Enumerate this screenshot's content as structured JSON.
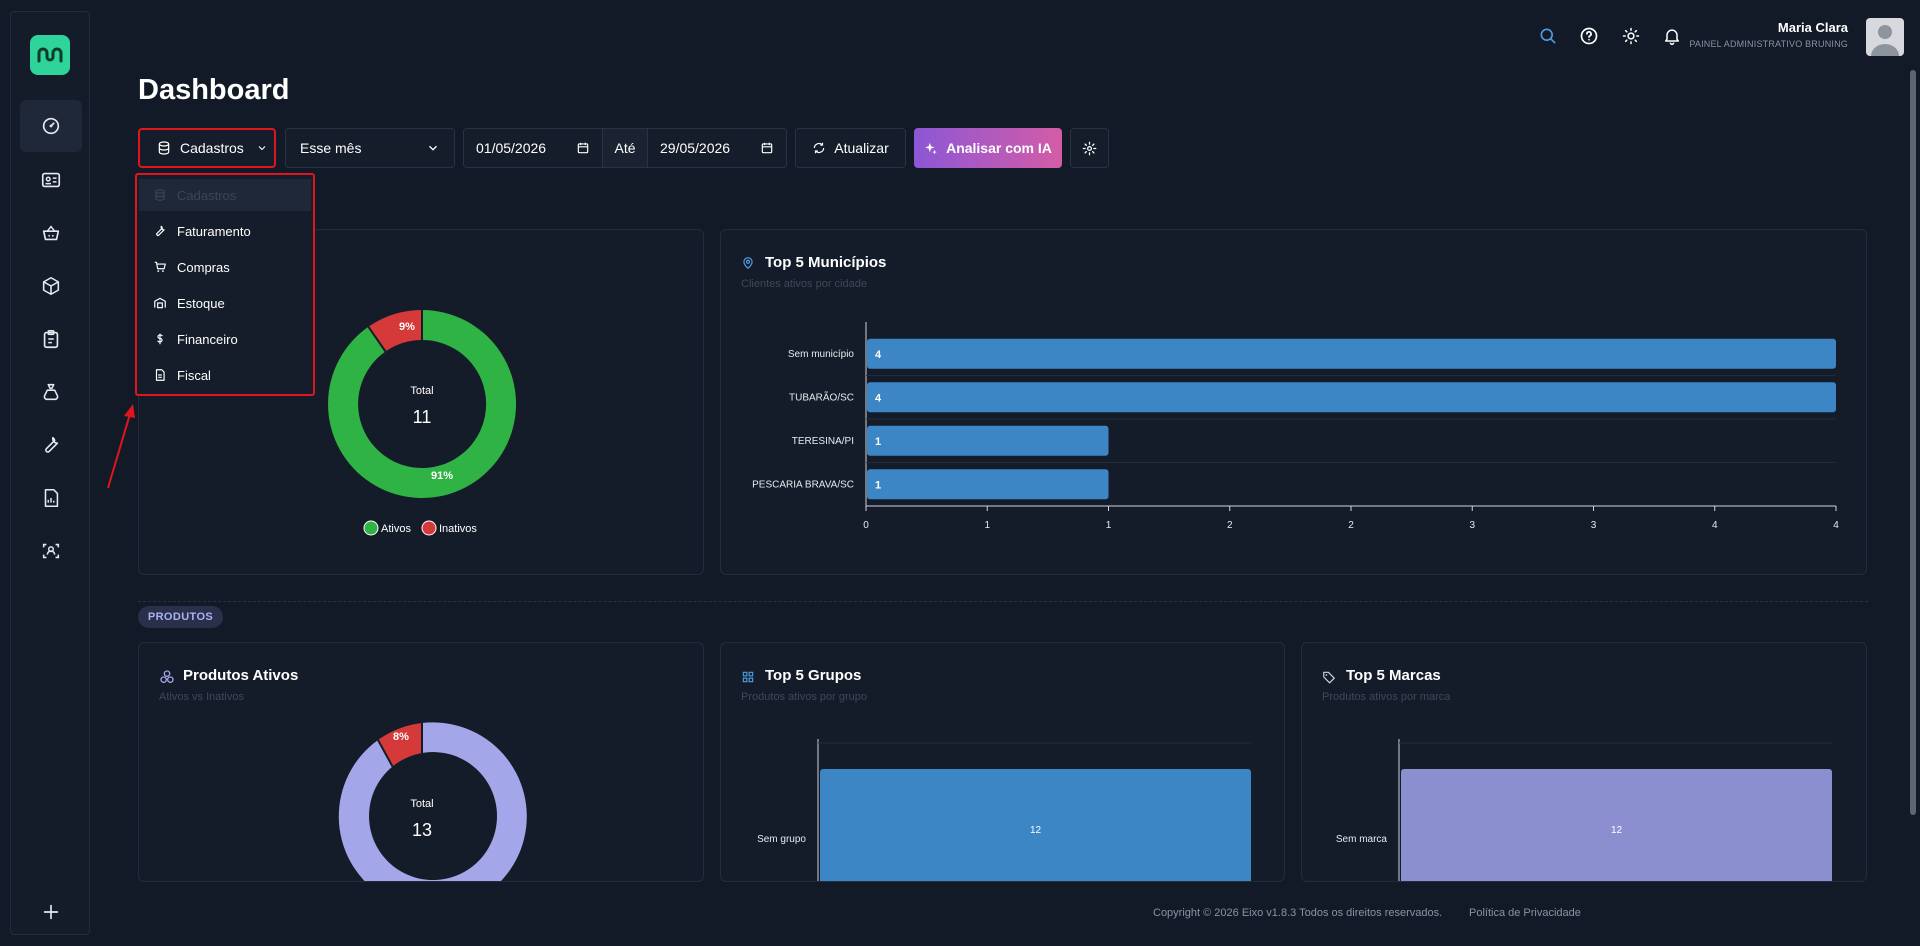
{
  "sidebar": {
    "items": [
      {
        "icon": "gauge-icon",
        "active": true
      },
      {
        "icon": "id-card-icon"
      },
      {
        "icon": "basket-icon"
      },
      {
        "icon": "box-icon"
      },
      {
        "icon": "clipboard-icon"
      },
      {
        "icon": "money-bag-icon"
      },
      {
        "icon": "wrench-icon"
      },
      {
        "icon": "report-icon"
      },
      {
        "icon": "scan-user-icon"
      }
    ],
    "add_icon": "plus-icon"
  },
  "topbar": {
    "user_name": "Maria Clara",
    "user_subtitle": "PAINEL ADMINISTRATIVO BRUNING"
  },
  "page": {
    "title": "Dashboard"
  },
  "toolbar": {
    "module_select": "Cadastros",
    "period_select": "Esse mês",
    "date_from": "01/05/2026",
    "between_label": "Até",
    "date_to": "29/05/2026",
    "refresh_label": "Atualizar",
    "ai_label": "Analisar com IA"
  },
  "dropdown": {
    "items": [
      {
        "label": "Cadastros",
        "icon": "database-icon",
        "disabled": true
      },
      {
        "label": "Faturamento",
        "icon": "wrench-icon"
      },
      {
        "label": "Compras",
        "icon": "cart-icon"
      },
      {
        "label": "Estoque",
        "icon": "warehouse-icon"
      },
      {
        "label": "Financeiro",
        "icon": "dollar-icon"
      },
      {
        "label": "Fiscal",
        "icon": "file-icon"
      }
    ]
  },
  "clientes_card": {
    "total_label": "Total",
    "total_value": "11",
    "slice_ativos": "91%",
    "slice_inativos": "9%",
    "legend_ativos": "Ativos",
    "legend_inativos": "Inativos",
    "colors": {
      "ativos": "#2fb344",
      "inativos": "#d63939"
    }
  },
  "municipios_card": {
    "title": "Top 5 Municípios",
    "subtitle": "Clientes ativos por cidade"
  },
  "section_badge": "PRODUTOS",
  "produtos_card": {
    "title": "Produtos Ativos",
    "subtitle": "Ativos vs Inativos",
    "total_label": "Total",
    "total_value": "13",
    "slice_inativos": "8%",
    "colors": {
      "ativos": "#a3a6e8",
      "inativos": "#d63939"
    }
  },
  "grupos_card": {
    "title": "Top 5 Grupos",
    "subtitle": "Produtos ativos por grupo"
  },
  "marcas_card": {
    "title": "Top 5 Marcas",
    "subtitle": "Produtos ativos por marca"
  },
  "footer": {
    "copyright": "Copyright © 2026 Eixo v1.8.3 Todos os direitos reservados.",
    "privacy": "Política de Privacidade"
  },
  "chart_data": [
    {
      "type": "pie",
      "categories": [
        "Ativos",
        "Inativos"
      ],
      "values": [
        10,
        1
      ],
      "labels": [
        "91%",
        "9%"
      ]
    },
    {
      "type": "bar",
      "orientation": "horizontal",
      "categories": [
        "Sem município",
        "TUBARÃO/SC",
        "TERESINA/PI",
        "PESCARIA BRAVA/SC"
      ],
      "values": [
        4,
        4,
        1,
        1
      ],
      "xticks": [
        "0",
        "1",
        "1",
        "2",
        "2",
        "3",
        "3",
        "4",
        "4"
      ],
      "xlim": [
        0,
        4
      ],
      "color": "#3d86c6"
    },
    {
      "type": "pie",
      "categories": [
        "Ativos",
        "Inativos"
      ],
      "values": [
        12,
        1
      ],
      "labels": [
        "",
        "8%"
      ]
    },
    {
      "type": "bar",
      "categories": [
        "Sem grupo"
      ],
      "values": [
        12
      ],
      "color": "#3d86c6"
    },
    {
      "type": "bar",
      "categories": [
        "Sem marca"
      ],
      "values": [
        12
      ],
      "color": "#8b8fcf"
    }
  ]
}
